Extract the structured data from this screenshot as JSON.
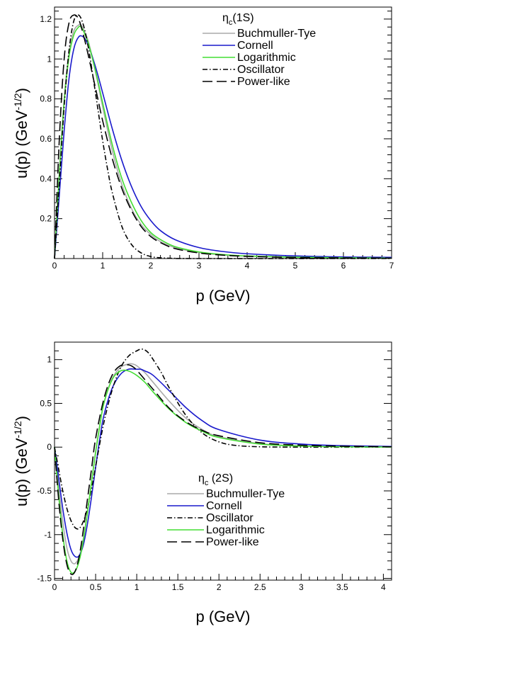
{
  "chart_data": [
    {
      "type": "line",
      "title": "",
      "legend_header": {
        "main": "η",
        "sub": "c",
        "rest": "(1S)"
      },
      "xlabel": "p (GeV)",
      "ylabel": {
        "main": "u(p) (GeV",
        "sup": "-1/2",
        "end": ")"
      },
      "xlim": [
        0,
        7
      ],
      "ylim": [
        0,
        1.26
      ],
      "xticks": [
        0,
        1,
        2,
        3,
        4,
        5,
        6,
        7
      ],
      "xtick_labels": [
        "0",
        "1",
        "2",
        "3",
        "4",
        "5",
        "6",
        "7"
      ],
      "yticks": [
        0.2,
        0.4,
        0.6,
        0.8,
        1.0,
        1.2
      ],
      "ytick_labels": [
        "0.2",
        "0.4",
        "0.6",
        "0.8",
        "1",
        "1.2"
      ],
      "legend_position": "top-right",
      "grid": false,
      "series": [
        {
          "name": "Buchmuller-Tye",
          "color": "#aaaaaa",
          "style": "solid",
          "x": [
            0,
            0.1,
            0.2,
            0.3,
            0.4,
            0.5,
            0.55,
            0.6,
            0.7,
            0.8,
            0.9,
            1.0,
            1.2,
            1.4,
            1.6,
            1.8,
            2.0,
            2.2,
            2.5,
            3.0,
            3.5,
            4.0,
            5.0,
            6.0,
            7.0
          ],
          "y": [
            0,
            0.43,
            0.8,
            1.03,
            1.14,
            1.17,
            1.17,
            1.15,
            1.09,
            0.99,
            0.88,
            0.76,
            0.54,
            0.37,
            0.25,
            0.17,
            0.12,
            0.085,
            0.055,
            0.03,
            0.018,
            0.012,
            0.006,
            0.003,
            0.002
          ]
        },
        {
          "name": "Cornell",
          "color": "#1a1acc",
          "style": "solid",
          "x": [
            0,
            0.1,
            0.2,
            0.3,
            0.4,
            0.5,
            0.6,
            0.7,
            0.8,
            0.9,
            1.0,
            1.2,
            1.4,
            1.6,
            1.8,
            2.0,
            2.2,
            2.5,
            3.0,
            3.5,
            4.0,
            5.0,
            6.0,
            7.0
          ],
          "y": [
            0,
            0.32,
            0.64,
            0.9,
            1.05,
            1.11,
            1.11,
            1.07,
            1.0,
            0.92,
            0.83,
            0.65,
            0.49,
            0.36,
            0.26,
            0.19,
            0.14,
            0.095,
            0.055,
            0.035,
            0.024,
            0.013,
            0.008,
            0.006
          ]
        },
        {
          "name": "Logarithmic",
          "color": "#44dd33",
          "style": "solid",
          "x": [
            0,
            0.1,
            0.2,
            0.3,
            0.4,
            0.5,
            0.55,
            0.6,
            0.7,
            0.8,
            0.9,
            1.0,
            1.2,
            1.4,
            1.6,
            1.8,
            2.0,
            2.2,
            2.5,
            3.0,
            3.5,
            4.0,
            5.0,
            6.0,
            7.0
          ],
          "y": [
            0,
            0.42,
            0.78,
            1.01,
            1.12,
            1.16,
            1.16,
            1.14,
            1.08,
            0.99,
            0.89,
            0.78,
            0.57,
            0.4,
            0.28,
            0.19,
            0.13,
            0.095,
            0.06,
            0.033,
            0.02,
            0.013,
            0.007,
            0.004,
            0.002
          ]
        },
        {
          "name": "Oscillator",
          "color": "#000000",
          "style": "dashdot",
          "x": [
            0,
            0.1,
            0.2,
            0.3,
            0.4,
            0.5,
            0.6,
            0.7,
            0.8,
            0.9,
            1.0,
            1.1,
            1.2,
            1.4,
            1.6,
            1.8,
            2.0,
            2.2,
            2.5,
            3.0,
            7.0
          ],
          "y": [
            0,
            0.38,
            0.76,
            1.04,
            1.19,
            1.22,
            1.17,
            1.06,
            0.91,
            0.75,
            0.59,
            0.45,
            0.33,
            0.16,
            0.07,
            0.028,
            0.01,
            0.004,
            0.001,
            0,
            0
          ]
        },
        {
          "name": "Power-like",
          "color": "#000000",
          "style": "longdash",
          "x": [
            0,
            0.1,
            0.2,
            0.3,
            0.4,
            0.5,
            0.6,
            0.7,
            0.8,
            0.9,
            1.0,
            1.2,
            1.4,
            1.6,
            1.8,
            2.0,
            2.2,
            2.5,
            3.0,
            3.5,
            4.0,
            5.0,
            6.0,
            7.0
          ],
          "y": [
            0,
            0.6,
            1.0,
            1.18,
            1.22,
            1.2,
            1.12,
            1.02,
            0.91,
            0.8,
            0.69,
            0.5,
            0.35,
            0.24,
            0.16,
            0.11,
            0.08,
            0.05,
            0.028,
            0.017,
            0.011,
            0.005,
            0.003,
            0.002
          ]
        }
      ]
    },
    {
      "type": "line",
      "title": "",
      "legend_header": {
        "main": "η",
        "sub": "c",
        "rest": " (2S)"
      },
      "xlabel": "p (GeV)",
      "ylabel": {
        "main": "u(p) (GeV",
        "sup": "-1/2",
        "end": ")"
      },
      "xlim": [
        0,
        4.1
      ],
      "ylim": [
        -1.52,
        1.2
      ],
      "xticks": [
        0,
        0.5,
        1,
        1.5,
        2,
        2.5,
        3,
        3.5,
        4
      ],
      "xtick_labels": [
        "0",
        "0.5",
        "1",
        "1.5",
        "2",
        "2.5",
        "3",
        "3.5",
        "4"
      ],
      "yticks": [
        -1.5,
        -1,
        -0.5,
        0,
        0.5,
        1
      ],
      "ytick_labels": [
        "-1.5",
        "-1",
        "-0.5",
        "0",
        "0.5",
        "1"
      ],
      "legend_position": "center-left",
      "grid": false,
      "series": [
        {
          "name": "Buchmuller-Tye",
          "color": "#aaaaaa",
          "style": "solid",
          "x": [
            0,
            0.05,
            0.1,
            0.15,
            0.2,
            0.25,
            0.3,
            0.35,
            0.4,
            0.45,
            0.5,
            0.55,
            0.6,
            0.7,
            0.8,
            0.9,
            0.95,
            1.0,
            1.1,
            1.2,
            1.4,
            1.6,
            1.8,
            2.0,
            2.5,
            3.0,
            3.5,
            4.1
          ],
          "y": [
            0,
            -0.45,
            -0.85,
            -1.15,
            -1.3,
            -1.33,
            -1.25,
            -1.05,
            -0.75,
            -0.4,
            -0.05,
            0.25,
            0.5,
            0.78,
            0.91,
            0.95,
            0.95,
            0.93,
            0.85,
            0.74,
            0.52,
            0.33,
            0.2,
            0.12,
            0.04,
            0.015,
            0.006,
            0.002
          ]
        },
        {
          "name": "Cornell",
          "color": "#1a1acc",
          "style": "solid",
          "x": [
            0,
            0.05,
            0.1,
            0.15,
            0.2,
            0.25,
            0.3,
            0.35,
            0.4,
            0.45,
            0.5,
            0.55,
            0.6,
            0.7,
            0.8,
            0.9,
            1.0,
            1.05,
            1.1,
            1.2,
            1.4,
            1.6,
            1.8,
            2.0,
            2.5,
            3.0,
            3.5,
            4.1
          ],
          "y": [
            0,
            -0.35,
            -0.7,
            -0.98,
            -1.17,
            -1.25,
            -1.24,
            -1.12,
            -0.88,
            -0.57,
            -0.23,
            0.09,
            0.36,
            0.67,
            0.83,
            0.89,
            0.89,
            0.89,
            0.87,
            0.82,
            0.64,
            0.45,
            0.3,
            0.2,
            0.08,
            0.035,
            0.017,
            0.008
          ]
        },
        {
          "name": "Oscillator",
          "color": "#000000",
          "style": "dashdot",
          "x": [
            0,
            0.05,
            0.1,
            0.15,
            0.2,
            0.25,
            0.3,
            0.35,
            0.4,
            0.45,
            0.5,
            0.6,
            0.7,
            0.8,
            0.9,
            1.0,
            1.05,
            1.1,
            1.15,
            1.2,
            1.3,
            1.4,
            1.6,
            1.8,
            2.0,
            2.2,
            2.5,
            3.0,
            4.1
          ],
          "y": [
            0,
            -0.25,
            -0.5,
            -0.7,
            -0.84,
            -0.92,
            -0.93,
            -0.85,
            -0.7,
            -0.48,
            -0.22,
            0.28,
            0.65,
            0.9,
            1.04,
            1.1,
            1.12,
            1.11,
            1.07,
            1.0,
            0.85,
            0.67,
            0.36,
            0.16,
            0.06,
            0.02,
            0.004,
            0,
            0
          ]
        },
        {
          "name": "Logarithmic",
          "color": "#44dd33",
          "style": "solid",
          "x": [
            0,
            0.05,
            0.1,
            0.15,
            0.2,
            0.25,
            0.3,
            0.35,
            0.4,
            0.45,
            0.5,
            0.55,
            0.6,
            0.7,
            0.8,
            0.9,
            1.0,
            1.1,
            1.2,
            1.4,
            1.6,
            1.8,
            2.0,
            2.5,
            3.0,
            3.5,
            4.1
          ],
          "y": [
            0,
            -0.55,
            -1.0,
            -1.3,
            -1.43,
            -1.42,
            -1.3,
            -1.07,
            -0.75,
            -0.4,
            -0.06,
            0.24,
            0.5,
            0.77,
            0.87,
            0.87,
            0.82,
            0.74,
            0.63,
            0.43,
            0.28,
            0.18,
            0.11,
            0.035,
            0.012,
            0.004,
            0.001
          ]
        },
        {
          "name": "Power-like",
          "color": "#000000",
          "style": "longdash",
          "x": [
            0,
            0.05,
            0.1,
            0.15,
            0.2,
            0.25,
            0.3,
            0.35,
            0.4,
            0.45,
            0.5,
            0.6,
            0.7,
            0.8,
            0.9,
            0.95,
            1.0,
            1.1,
            1.2,
            1.4,
            1.6,
            1.8,
            2.0,
            2.5,
            3.0,
            3.5,
            4.1
          ],
          "y": [
            0,
            -0.6,
            -1.05,
            -1.34,
            -1.45,
            -1.42,
            -1.25,
            -0.95,
            -0.6,
            -0.25,
            0.1,
            0.55,
            0.82,
            0.93,
            0.94,
            0.92,
            0.88,
            0.77,
            0.66,
            0.44,
            0.29,
            0.19,
            0.13,
            0.05,
            0.022,
            0.01,
            0.004
          ]
        }
      ]
    }
  ]
}
